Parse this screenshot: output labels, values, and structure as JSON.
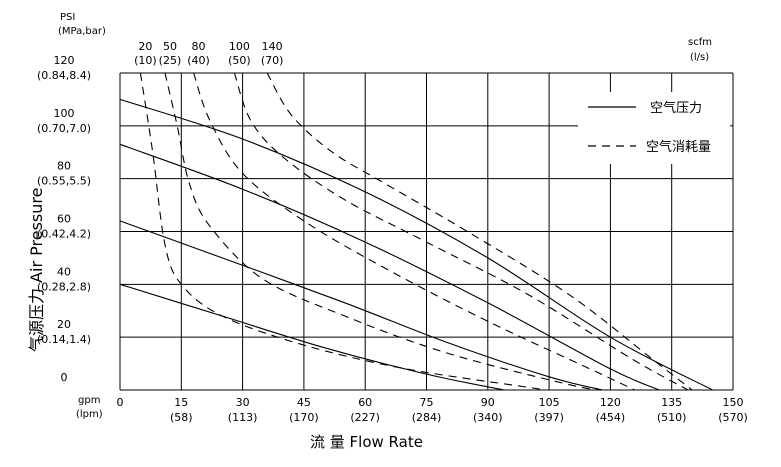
{
  "chart_data": {
    "type": "line",
    "title": "",
    "xlabel": "流 量 Flow Rate",
    "ylabel": "气源压力 Air Pressure",
    "x_unit_label": "gpm",
    "x_unit_label_secondary": "(lpm)",
    "y_unit_label": "PSI",
    "y_unit_label_secondary": "(MPa,bar)",
    "air_unit_label": "scfm",
    "air_unit_label_secondary": "(l/s)",
    "xlim": [
      0,
      150
    ],
    "ylim": [
      0,
      120
    ],
    "x_ticks": [
      {
        "value": 0,
        "label": "0",
        "sub": ""
      },
      {
        "value": 15,
        "label": "15",
        "sub": "(58)"
      },
      {
        "value": 30,
        "label": "30",
        "sub": "(113)"
      },
      {
        "value": 45,
        "label": "45",
        "sub": "(170)"
      },
      {
        "value": 60,
        "label": "60",
        "sub": "(227)"
      },
      {
        "value": 75,
        "label": "75",
        "sub": "(284)"
      },
      {
        "value": 90,
        "label": "90",
        "sub": "(340)"
      },
      {
        "value": 105,
        "label": "105",
        "sub": "(397)"
      },
      {
        "value": 120,
        "label": "120",
        "sub": "(454)"
      },
      {
        "value": 135,
        "label": "135",
        "sub": "(510)"
      },
      {
        "value": 150,
        "label": "150",
        "sub": "(570)"
      }
    ],
    "y_ticks": [
      {
        "value": 0,
        "label": "0",
        "sub": ""
      },
      {
        "value": 20,
        "label": "20",
        "sub": "(0.14,1.4)"
      },
      {
        "value": 40,
        "label": "40",
        "sub": "(0.28,2.8)"
      },
      {
        "value": 60,
        "label": "60",
        "sub": "(0.42,4.2)"
      },
      {
        "value": 80,
        "label": "80",
        "sub": "(0.55,5.5)"
      },
      {
        "value": 100,
        "label": "100",
        "sub": "(0.70,7.0)"
      },
      {
        "value": 120,
        "label": "120",
        "sub": "(0.84,8.4)"
      }
    ],
    "air_consumption_ticks": [
      {
        "label": "20",
        "sub": "(10)",
        "x": 5
      },
      {
        "label": "50",
        "sub": "(25)",
        "x": 11
      },
      {
        "label": "80",
        "sub": "(40)",
        "x": 18
      },
      {
        "label": "100",
        "sub": "(50)",
        "x": 28
      },
      {
        "label": "140",
        "sub": "(70)",
        "x": 36
      }
    ],
    "grid": true,
    "legend_position": "top-right",
    "legend": [
      {
        "label": "空气压力",
        "style": "solid"
      },
      {
        "label": "空气消耗量",
        "style": "dashed"
      }
    ],
    "series": [
      {
        "style": "solid",
        "points": [
          [
            0,
            110
          ],
          [
            30,
            95
          ],
          [
            60,
            75
          ],
          [
            90,
            50
          ],
          [
            120,
            20
          ],
          [
            145,
            0
          ]
        ]
      },
      {
        "style": "solid",
        "points": [
          [
            0,
            93
          ],
          [
            30,
            76
          ],
          [
            60,
            56
          ],
          [
            90,
            33
          ],
          [
            120,
            8
          ],
          [
            132,
            0
          ]
        ]
      },
      {
        "style": "solid",
        "points": [
          [
            0,
            64
          ],
          [
            25,
            50
          ],
          [
            55,
            33
          ],
          [
            80,
            18
          ],
          [
            105,
            5
          ],
          [
            118,
            0
          ]
        ]
      },
      {
        "style": "solid",
        "points": [
          [
            0,
            40
          ],
          [
            25,
            28
          ],
          [
            50,
            16
          ],
          [
            75,
            6
          ],
          [
            94,
            0
          ]
        ]
      },
      {
        "style": "dashed",
        "points": [
          [
            5,
            120
          ],
          [
            8,
            90
          ],
          [
            11,
            55
          ],
          [
            15,
            40
          ],
          [
            25,
            28
          ],
          [
            45,
            17
          ],
          [
            70,
            8
          ],
          [
            100,
            1
          ],
          [
            104,
            0
          ]
        ]
      },
      {
        "style": "dashed",
        "points": [
          [
            11,
            120
          ],
          [
            14,
            100
          ],
          [
            17,
            78
          ],
          [
            22,
            62
          ],
          [
            35,
            42
          ],
          [
            55,
            28
          ],
          [
            80,
            14
          ],
          [
            110,
            2
          ],
          [
            118,
            0
          ]
        ]
      },
      {
        "style": "dashed",
        "points": [
          [
            18,
            120
          ],
          [
            22,
            102
          ],
          [
            30,
            82
          ],
          [
            45,
            64
          ],
          [
            65,
            46
          ],
          [
            90,
            26
          ],
          [
            115,
            8
          ],
          [
            126,
            0
          ]
        ]
      },
      {
        "style": "dashed",
        "points": [
          [
            28,
            120
          ],
          [
            32,
            102
          ],
          [
            40,
            88
          ],
          [
            55,
            72
          ],
          [
            75,
            56
          ],
          [
            100,
            36
          ],
          [
            125,
            12
          ],
          [
            139,
            0
          ]
        ]
      },
      {
        "style": "dashed",
        "points": [
          [
            36,
            120
          ],
          [
            42,
            104
          ],
          [
            52,
            90
          ],
          [
            65,
            78
          ],
          [
            85,
            60
          ],
          [
            110,
            36
          ],
          [
            130,
            12
          ],
          [
            140,
            0
          ]
        ]
      }
    ]
  }
}
